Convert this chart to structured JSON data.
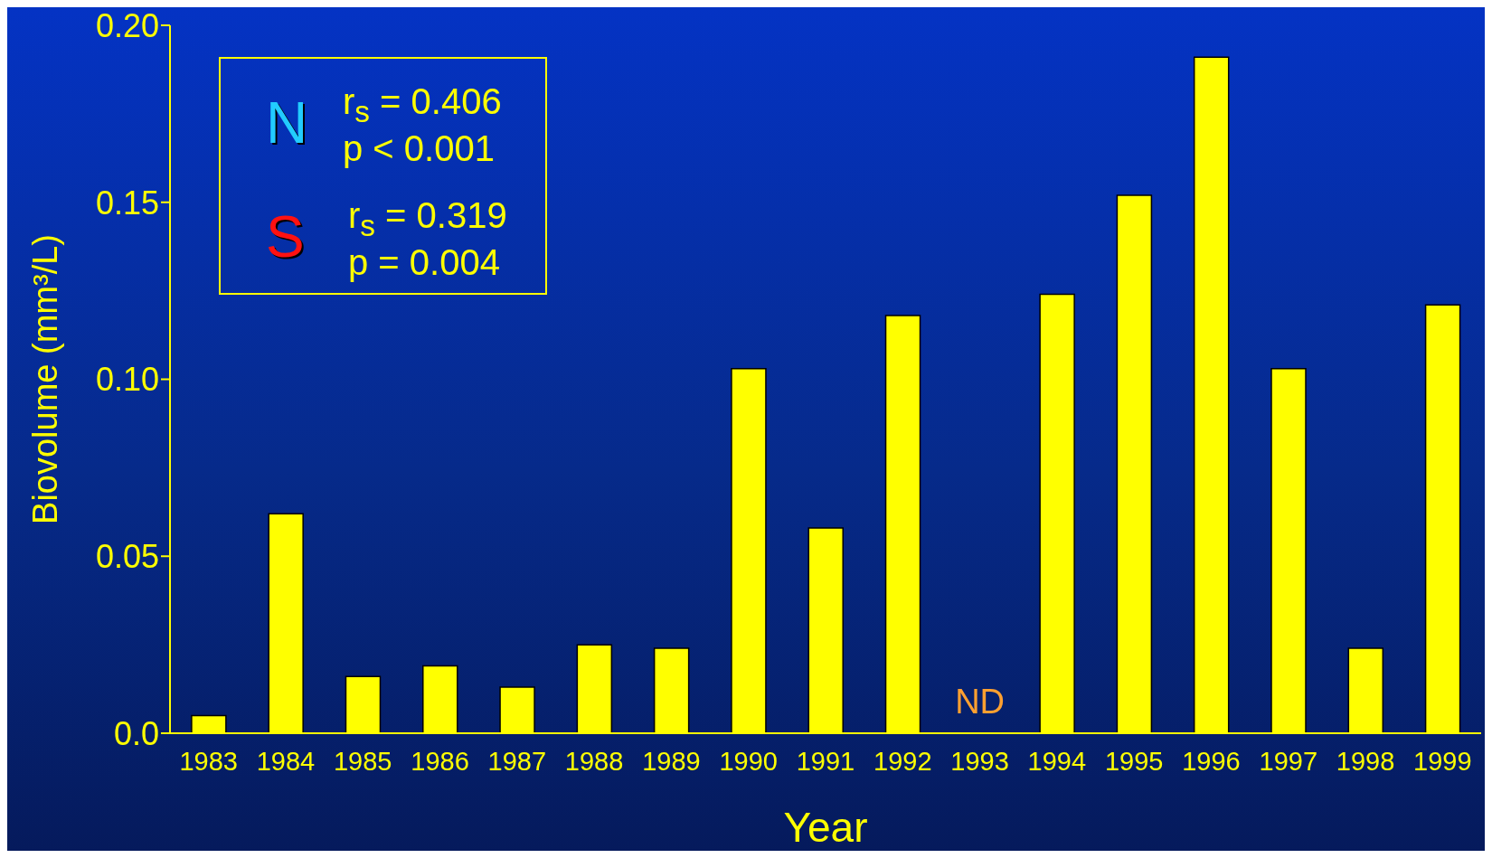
{
  "chart_data": {
    "type": "bar",
    "xlabel": "Year",
    "ylabel": "Biovolume (mm³/L)",
    "categories": [
      "1983",
      "1984",
      "1985",
      "1986",
      "1987",
      "1988",
      "1989",
      "1990",
      "1991",
      "1992",
      "1993",
      "1994",
      "1995",
      "1996",
      "1997",
      "1998",
      "1999"
    ],
    "values": [
      0.005,
      0.062,
      0.016,
      0.019,
      0.013,
      0.025,
      0.024,
      0.103,
      0.058,
      0.118,
      null,
      0.124,
      0.152,
      0.191,
      0.103,
      0.024,
      0.121
    ],
    "color": "#ffff00",
    "ylim": [
      0,
      0.2
    ],
    "yticks": [
      {
        "value": 0,
        "label": "0.0"
      },
      0.05,
      {
        "value": 0.1,
        "label": "0.10"
      },
      0.15,
      {
        "value": 0.2,
        "label": "0.20"
      }
    ],
    "annotations": [
      "N",
      "r$_{s}$ = 0.406",
      "p < 0.001",
      "S",
      "r$_{s}$ = 0.319",
      "p = 0.004",
      "ND"
    ]
  }
}
